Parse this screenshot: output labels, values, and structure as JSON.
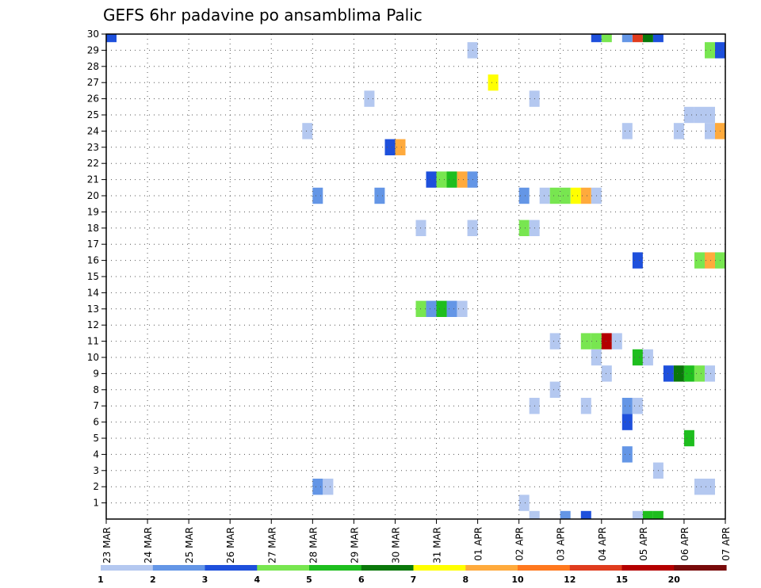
{
  "chart_data": {
    "type": "heatmap",
    "title": "GEFS 6hr padavine po ansamblima Palic",
    "xlabel": "",
    "ylabel": "",
    "x_ticks": [
      "23 MAR",
      "24 MAR",
      "25 MAR",
      "26 MAR",
      "27 MAR",
      "28 MAR",
      "29 MAR",
      "30 MAR",
      "31 MAR",
      "01 APR",
      "02 APR",
      "03 APR",
      "04 APR",
      "05 APR",
      "06 APR",
      "07 APR"
    ],
    "y_ticks": [
      "1",
      "2",
      "3",
      "4",
      "5",
      "6",
      "7",
      "8",
      "9",
      "10",
      "11",
      "12",
      "13",
      "14",
      "15",
      "16",
      "17",
      "18",
      "19",
      "20",
      "21",
      "22",
      "23",
      "24",
      "25",
      "26",
      "27",
      "28",
      "29",
      "30"
    ],
    "x_range": [
      "23 MAR",
      "07 APR"
    ],
    "y_range": [
      0,
      30
    ],
    "grid": true,
    "colorbar": {
      "labels": [
        "1",
        "2",
        "3",
        "4",
        "5",
        "6",
        "7",
        "8",
        "10",
        "12",
        "15",
        "20"
      ],
      "colors": [
        "#b4c8f0",
        "#6496e6",
        "#1e50dc",
        "#78e650",
        "#1ebe1e",
        "#0a780a",
        "#ffff00",
        "#ffaa3c",
        "#ff781e",
        "#e03c1e",
        "#b40000",
        "#780a0a"
      ]
    },
    "cells": [
      {
        "day": 0.0,
        "member": 30,
        "level": 3
      },
      {
        "day": 11.75,
        "member": 30,
        "level": 3
      },
      {
        "day": 12.0,
        "member": 30,
        "level": 4
      },
      {
        "day": 12.5,
        "member": 30,
        "level": 2
      },
      {
        "day": 12.75,
        "member": 30,
        "level": 10
      },
      {
        "day": 13.0,
        "member": 30,
        "level": 6
      },
      {
        "day": 13.25,
        "member": 30,
        "level": 3
      },
      {
        "day": 8.75,
        "member": 29,
        "level": 1
      },
      {
        "day": 14.5,
        "member": 29,
        "level": 4
      },
      {
        "day": 14.75,
        "member": 29,
        "level": 3
      },
      {
        "day": 9.25,
        "member": 27,
        "level": 7
      },
      {
        "day": 6.25,
        "member": 26,
        "level": 1
      },
      {
        "day": 10.25,
        "member": 26,
        "level": 1
      },
      {
        "day": 14.0,
        "member": 25,
        "level": 1
      },
      {
        "day": 14.25,
        "member": 25,
        "level": 1
      },
      {
        "day": 14.5,
        "member": 25,
        "level": 1
      },
      {
        "day": 4.75,
        "member": 24,
        "level": 1
      },
      {
        "day": 12.5,
        "member": 24,
        "level": 1
      },
      {
        "day": 13.75,
        "member": 24,
        "level": 1
      },
      {
        "day": 14.5,
        "member": 24,
        "level": 1
      },
      {
        "day": 14.75,
        "member": 24,
        "level": 8
      },
      {
        "day": 6.75,
        "member": 23,
        "level": 3
      },
      {
        "day": 7.0,
        "member": 23,
        "level": 8
      },
      {
        "day": 7.75,
        "member": 21,
        "level": 3
      },
      {
        "day": 8.0,
        "member": 21,
        "level": 4
      },
      {
        "day": 8.25,
        "member": 21,
        "level": 5
      },
      {
        "day": 8.5,
        "member": 21,
        "level": 8
      },
      {
        "day": 8.75,
        "member": 21,
        "level": 2
      },
      {
        "day": 5.0,
        "member": 20,
        "level": 2
      },
      {
        "day": 6.5,
        "member": 20,
        "level": 2
      },
      {
        "day": 10.0,
        "member": 20,
        "level": 2
      },
      {
        "day": 10.5,
        "member": 20,
        "level": 1
      },
      {
        "day": 10.75,
        "member": 20,
        "level": 4
      },
      {
        "day": 11.0,
        "member": 20,
        "level": 4
      },
      {
        "day": 11.25,
        "member": 20,
        "level": 7
      },
      {
        "day": 11.5,
        "member": 20,
        "level": 8
      },
      {
        "day": 11.75,
        "member": 20,
        "level": 1
      },
      {
        "day": 7.5,
        "member": 18,
        "level": 1
      },
      {
        "day": 8.75,
        "member": 18,
        "level": 1
      },
      {
        "day": 10.0,
        "member": 18,
        "level": 4
      },
      {
        "day": 10.25,
        "member": 18,
        "level": 1
      },
      {
        "day": 14.25,
        "member": 16,
        "level": 4
      },
      {
        "day": 14.5,
        "member": 16,
        "level": 8
      },
      {
        "day": 14.75,
        "member": 16,
        "level": 4
      },
      {
        "day": 12.75,
        "member": 16,
        "level": 3
      },
      {
        "day": 7.5,
        "member": 13,
        "level": 4
      },
      {
        "day": 7.75,
        "member": 13,
        "level": 2
      },
      {
        "day": 8.0,
        "member": 13,
        "level": 5
      },
      {
        "day": 8.25,
        "member": 13,
        "level": 2
      },
      {
        "day": 8.5,
        "member": 13,
        "level": 1
      },
      {
        "day": 10.75,
        "member": 11,
        "level": 1
      },
      {
        "day": 11.5,
        "member": 11,
        "level": 4
      },
      {
        "day": 11.75,
        "member": 11,
        "level": 4
      },
      {
        "day": 12.0,
        "member": 11,
        "level": 11
      },
      {
        "day": 12.25,
        "member": 11,
        "level": 1
      },
      {
        "day": 11.75,
        "member": 10,
        "level": 1
      },
      {
        "day": 12.75,
        "member": 10,
        "level": 5
      },
      {
        "day": 13.0,
        "member": 10,
        "level": 1
      },
      {
        "day": 12.0,
        "member": 9,
        "level": 1
      },
      {
        "day": 13.5,
        "member": 9,
        "level": 3
      },
      {
        "day": 13.75,
        "member": 9,
        "level": 6
      },
      {
        "day": 14.0,
        "member": 9,
        "level": 5
      },
      {
        "day": 14.25,
        "member": 9,
        "level": 4
      },
      {
        "day": 14.5,
        "member": 9,
        "level": 1
      },
      {
        "day": 10.75,
        "member": 8,
        "level": 1
      },
      {
        "day": 10.25,
        "member": 7,
        "level": 1
      },
      {
        "day": 11.5,
        "member": 7,
        "level": 1
      },
      {
        "day": 12.5,
        "member": 7,
        "level": 2
      },
      {
        "day": 12.75,
        "member": 7,
        "level": 1
      },
      {
        "day": 12.5,
        "member": 6,
        "level": 3
      },
      {
        "day": 14.0,
        "member": 5,
        "level": 5
      },
      {
        "day": 12.5,
        "member": 4,
        "level": 2
      },
      {
        "day": 13.25,
        "member": 3,
        "level": 1
      },
      {
        "day": 5.0,
        "member": 2,
        "level": 2
      },
      {
        "day": 5.25,
        "member": 2,
        "level": 1
      },
      {
        "day": 14.25,
        "member": 2,
        "level": 1
      },
      {
        "day": 14.5,
        "member": 2,
        "level": 1
      },
      {
        "day": 10.0,
        "member": 1,
        "level": 1
      },
      {
        "day": 10.25,
        "member": 0,
        "level": 1
      },
      {
        "day": 11.0,
        "member": 0,
        "level": 2
      },
      {
        "day": 11.5,
        "member": 0,
        "level": 3
      },
      {
        "day": 12.75,
        "member": 0,
        "level": 1
      },
      {
        "day": 13.0,
        "member": 0,
        "level": 5
      },
      {
        "day": 13.25,
        "member": 0,
        "level": 5
      }
    ]
  }
}
